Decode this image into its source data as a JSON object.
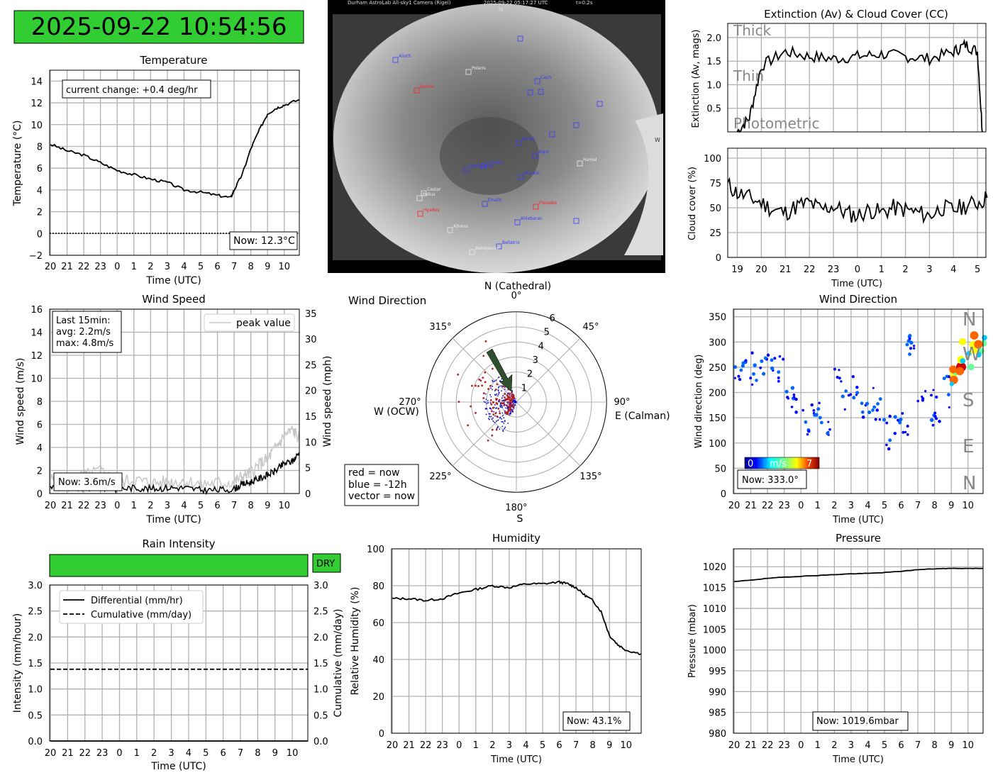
{
  "clock": {
    "text": "2025-09-22 10:54:56",
    "color": "#32cd32"
  },
  "colors": {
    "line": "#000000",
    "grid": "#b0b0b0",
    "dry": "#32cd32",
    "now_red": "#b22222",
    "old_blue": "#0000cd",
    "vector": "#2f4f2f"
  },
  "time_ticks": [
    "20",
    "21",
    "22",
    "23",
    "0",
    "1",
    "2",
    "3",
    "4",
    "5",
    "6",
    "7",
    "8",
    "9",
    "10"
  ],
  "temperature": {
    "title": "Temperature",
    "xlabel": "Time (UTC)",
    "ylabel": "Temperature (°C)",
    "annotation": "current change: +0.4 deg/hr",
    "now": "Now: 12.3°C",
    "yticks": [
      "−2",
      "0",
      "2",
      "4",
      "6",
      "8",
      "10",
      "12",
      "14"
    ]
  },
  "allsky": {
    "header": "Durham AstroLab All-sky1 Camera (Rigel)",
    "timestamp": "2025-09-22 05:17:27 UTC",
    "exposure": "t=0.2s",
    "north": "N",
    "south": "S",
    "west": "W",
    "stars": [
      {
        "name": "Alioth",
        "color": "blue"
      },
      {
        "name": "Polaris",
        "color": "white"
      },
      {
        "name": "Caph",
        "color": "blue"
      },
      {
        "name": "Dubhe",
        "color": "red"
      },
      {
        "name": "Mirfak",
        "color": "blue"
      },
      {
        "name": "Algol",
        "color": "blue"
      },
      {
        "name": "Hamal",
        "color": "white"
      },
      {
        "name": "Capella",
        "color": "blue"
      },
      {
        "name": "Menkalinan",
        "color": "blue"
      },
      {
        "name": "Menkib",
        "color": "blue"
      },
      {
        "name": "Castor",
        "color": "white"
      },
      {
        "name": "Pollux",
        "color": "white"
      },
      {
        "name": "Elnath",
        "color": "blue"
      },
      {
        "name": "Hyades",
        "color": "red"
      },
      {
        "name": "Aldebaran",
        "color": "blue"
      },
      {
        "name": "Alhena",
        "color": "white"
      },
      {
        "name": "Bellatrix",
        "color": "blue"
      },
      {
        "name": "Betelgeuse",
        "color": "white"
      },
      {
        "name": "Pleiades",
        "color": "red"
      }
    ]
  },
  "extinction": {
    "title": "Extinction (Av) & Cloud Cover (CC)",
    "ylabel": "Extinction (Av, mags)",
    "yticks": [
      "0.5",
      "1.0",
      "1.5",
      "2.0"
    ],
    "bands": [
      "Thick",
      "Thin",
      "Photometric"
    ]
  },
  "cloud": {
    "ylabel": "Cloud cover (%)",
    "xlabel": "Time (UTC)",
    "yticks": [
      "0",
      "25",
      "50",
      "75",
      "100"
    ],
    "xticks": [
      "19",
      "20",
      "21",
      "22",
      "23",
      "0",
      "1",
      "2",
      "3",
      "4",
      "5"
    ]
  },
  "wind_speed": {
    "title": "Wind Speed",
    "xlabel": "Time (UTC)",
    "ylabel": "Wind speed (m/s)",
    "ylabel2": "Wind speed (mph)",
    "legend": "peak value",
    "stats": [
      "Last 15min:",
      "avg: 2.2m/s",
      "max: 4.8m/s"
    ],
    "now": "Now: 3.6m/s",
    "yticks": [
      "0",
      "2",
      "4",
      "6",
      "8",
      "10",
      "12",
      "14",
      "16"
    ],
    "yticks2": [
      "0",
      "5",
      "10",
      "15",
      "20",
      "25",
      "30",
      "35"
    ]
  },
  "wind_polar": {
    "title": "Wind Direction",
    "north": "N (Cathedral)",
    "east": "E (Calman)",
    "west": "W (OCW)",
    "south": "S",
    "angles": [
      "0°",
      "45°",
      "90°",
      "135°",
      "180°",
      "225°",
      "270°",
      "315°"
    ],
    "rings": [
      "1",
      "2",
      "3",
      "4",
      "5",
      "6"
    ],
    "legend": [
      "red = now",
      "blue = -12h",
      "vector = now"
    ]
  },
  "wind_dir": {
    "title": "Wind Direction",
    "xlabel": "Time (UTC)",
    "ylabel": "Wind direction (deg)",
    "yticks": [
      "0",
      "50",
      "100",
      "150",
      "200",
      "250",
      "300",
      "350"
    ],
    "compass": [
      "N",
      "W",
      "S",
      "E",
      "N"
    ],
    "cbar": {
      "min": "0",
      "label": "m/s",
      "max": "7"
    },
    "now": "Now: 333.0°"
  },
  "rain": {
    "title": "Rain Intensity",
    "status": "DRY",
    "xlabel": "Time (UTC)",
    "ylabel": "Intensity (mm/hour)",
    "ylabel2": "Cumulative (mm/day)",
    "legend": [
      "Differential (mm/hr)",
      "Cumulative (mm/day)"
    ],
    "yticks": [
      "0.0",
      "0.5",
      "1.0",
      "1.5",
      "2.0",
      "2.5",
      "3.0"
    ]
  },
  "humidity": {
    "title": "Humidity",
    "xlabel": "Time (UTC)",
    "ylabel": "Relative Humidity (%)",
    "yticks": [
      "0",
      "20",
      "40",
      "60",
      "80",
      "100"
    ],
    "now": "Now: 43.1%"
  },
  "pressure": {
    "title": "Pressure",
    "xlabel": "Time (UTC)",
    "ylabel": "Pressure (mbar)",
    "yticks": [
      "980",
      "985",
      "990",
      "995",
      "1000",
      "1005",
      "1010",
      "1015",
      "1020"
    ],
    "now": "Now: 1019.6mbar"
  },
  "chart_data": [
    {
      "type": "line",
      "title": "Temperature",
      "xlabel": "Time (UTC)",
      "ylabel": "Temperature (°C)",
      "ylim": [
        -2,
        15
      ],
      "x": [
        20,
        21,
        22,
        23,
        0,
        1,
        2,
        3,
        4,
        5,
        6,
        6.8,
        7,
        7.5,
        8,
        8.5,
        9,
        9.5,
        10,
        10.9
      ],
      "series": [
        {
          "values": [
            8.2,
            7.6,
            7.2,
            6.5,
            5.8,
            5.4,
            5.0,
            4.7,
            4.0,
            3.8,
            3.5,
            3.3,
            4.0,
            5.5,
            7.8,
            9.5,
            11.0,
            11.5,
            11.8,
            12.3
          ]
        }
      ]
    },
    {
      "type": "line",
      "title": "Extinction (Av) & Cloud Cover (CC)",
      "ylabel": "Extinction (Av, mags)",
      "ylim": [
        0,
        2.3
      ],
      "x": [
        19,
        19.5,
        20,
        21,
        22,
        23,
        0,
        1,
        2,
        3,
        4,
        4.5,
        5,
        5.2
      ],
      "series": [
        {
          "values": [
            0.0,
            0.3,
            1.4,
            1.7,
            1.6,
            1.55,
            1.6,
            1.65,
            1.6,
            1.55,
            1.7,
            1.85,
            1.7,
            0.0
          ]
        }
      ]
    },
    {
      "type": "line",
      "ylabel": "Cloud cover (%)",
      "xlabel": "Time (UTC)",
      "ylim": [
        0,
        110
      ],
      "x": [
        18.6,
        19,
        19.5,
        20,
        20.5,
        21,
        21.5,
        22,
        22.5,
        23,
        23.5,
        0,
        0.5,
        1,
        1.5,
        2,
        2.5,
        3,
        3.5,
        4,
        4.5,
        5,
        5.4
      ],
      "series": [
        {
          "values": [
            73,
            65,
            60,
            55,
            48,
            45,
            52,
            55,
            48,
            52,
            45,
            42,
            48,
            45,
            50,
            48,
            45,
            42,
            50,
            48,
            52,
            55,
            60
          ]
        }
      ]
    },
    {
      "type": "line",
      "title": "Wind Speed",
      "xlabel": "Time (UTC)",
      "ylabel": "Wind speed (m/s)",
      "ylim": [
        0,
        16
      ],
      "x": [
        20,
        21,
        22,
        23,
        0,
        1,
        2,
        3,
        4,
        5,
        6,
        7,
        7.5,
        8,
        8.5,
        9,
        9.5,
        10,
        10.5,
        10.9
      ],
      "series": [
        {
          "name": "avg",
          "values": [
            0.6,
            0.4,
            0.5,
            0.5,
            0.4,
            0.5,
            0.4,
            0.5,
            0.5,
            0.3,
            0.3,
            0.4,
            0.8,
            1.0,
            1.3,
            1.6,
            2.0,
            2.6,
            2.8,
            3.6
          ]
        },
        {
          "name": "peak value",
          "values": [
            1.2,
            1.3,
            1.5,
            2.0,
            1.0,
            1.2,
            0.9,
            1.0,
            1.1,
            0.8,
            0.9,
            1.0,
            1.5,
            1.8,
            2.5,
            3.0,
            4.0,
            5.0,
            5.5,
            4.8
          ]
        }
      ]
    },
    {
      "type": "scatter",
      "title": "Wind Direction",
      "ylabel": "Wind direction (deg)",
      "xlabel": "Time (UTC)",
      "ylim": [
        0,
        360
      ],
      "x": [
        20,
        20.5,
        21,
        21.5,
        22,
        22.5,
        23,
        23.5,
        0,
        0.5,
        1,
        1.5,
        2,
        2.5,
        3,
        3.5,
        4,
        4.5,
        5,
        5.5,
        6,
        6.3,
        6.5,
        7,
        7.5,
        8,
        8.5,
        9,
        9.5,
        10,
        10.5
      ],
      "series": [
        {
          "values": [
            220,
            240,
            250,
            255,
            240,
            250,
            200,
            170,
            150,
            170,
            160,
            150,
            230,
            180,
            220,
            150,
            180,
            160,
            120,
            140,
            150,
            300,
            280,
            190,
            170,
            160,
            200,
            220,
            270,
            280,
            300
          ]
        }
      ]
    },
    {
      "type": "line",
      "title": "Rain Intensity",
      "ylabel": "Intensity (mm/hour)",
      "ylim": [
        0,
        3
      ],
      "series": [
        {
          "name": "Differential (mm/hr)",
          "values": [
            0,
            0
          ]
        },
        {
          "name": "Cumulative (mm/day)",
          "values": [
            1.38,
            1.38
          ]
        }
      ],
      "x": [
        20,
        10.9
      ]
    },
    {
      "type": "line",
      "title": "Humidity",
      "xlabel": "Time (UTC)",
      "ylabel": "Relative Humidity (%)",
      "ylim": [
        0,
        100
      ],
      "x": [
        20,
        21,
        22,
        23,
        0,
        1,
        2,
        3,
        4,
        5,
        6,
        6.5,
        7,
        7.5,
        8,
        8.5,
        9,
        9.5,
        10,
        10.9
      ],
      "series": [
        {
          "values": [
            73,
            73,
            72,
            73,
            76,
            78,
            80,
            79,
            81,
            81,
            82,
            81,
            79,
            75,
            72,
            66,
            53,
            48,
            45,
            43
          ]
        }
      ]
    },
    {
      "type": "line",
      "title": "Pressure",
      "xlabel": "Time (UTC)",
      "ylabel": "Pressure (mbar)",
      "ylim": [
        980,
        1024
      ],
      "x": [
        20,
        21,
        22,
        23,
        0,
        1,
        2,
        3,
        4,
        5,
        6,
        7,
        8,
        9,
        10,
        10.9
      ],
      "series": [
        {
          "values": [
            1016.4,
            1016.8,
            1017.2,
            1017.5,
            1017.7,
            1017.9,
            1018.1,
            1018.3,
            1018.4,
            1018.6,
            1018.9,
            1019.3,
            1019.5,
            1019.6,
            1019.6,
            1019.6
          ]
        }
      ]
    }
  ]
}
